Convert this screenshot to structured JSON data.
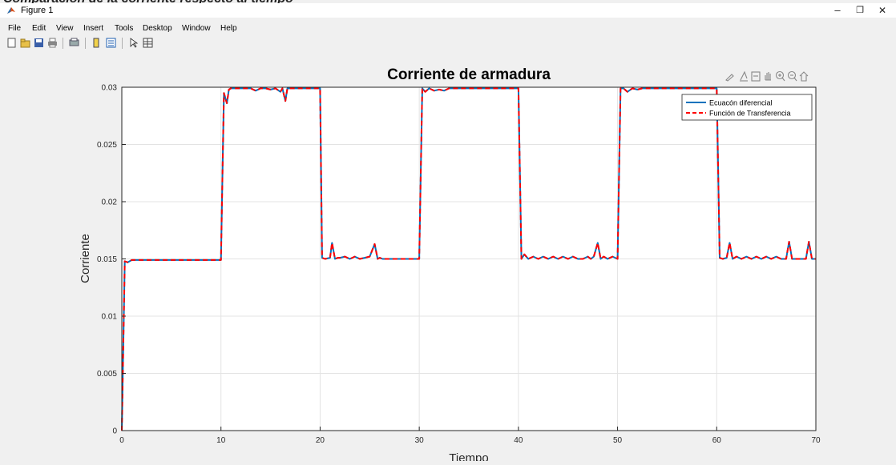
{
  "caption": "Comparación de la corriente respecto al tiempo",
  "window": {
    "title": "Figure 1",
    "minimize": "–",
    "restore": "❐",
    "close": "✕"
  },
  "menu": [
    "File",
    "Edit",
    "View",
    "Insert",
    "Tools",
    "Desktop",
    "Window",
    "Help"
  ],
  "axes_toolbar_icons": [
    "brush-icon",
    "data-tips-icon",
    "legend-icon",
    "pan-icon",
    "zoom-in-icon",
    "zoom-out-icon",
    "home-icon"
  ],
  "chart_data": {
    "type": "line",
    "title": "Corriente de armadura",
    "xlabel": "Tiempo",
    "ylabel": "Corriente",
    "xlim": [
      0,
      70
    ],
    "ylim": [
      0,
      0.03
    ],
    "xticks": [
      "0",
      "10",
      "20",
      "30",
      "40",
      "50",
      "60",
      "70"
    ],
    "yticks": [
      "0",
      "0.005",
      "0.01",
      "0.015",
      "0.02",
      "0.025",
      "0.03"
    ],
    "grid": true,
    "legend_position": "top-right",
    "series": [
      {
        "name": "Ecuacón diferencial",
        "color": "#0072bd",
        "style": "solid",
        "x": [
          0,
          0.3,
          0.6,
          1,
          2,
          4,
          6,
          8,
          10,
          10.3,
          10.6,
          10.8,
          11,
          11.3,
          12,
          13,
          13.5,
          14,
          14.5,
          15,
          15.5,
          16,
          16.2,
          16.5,
          16.7,
          17,
          17.5,
          18,
          19,
          20,
          20.2,
          20.5,
          21,
          21.2,
          21.5,
          21.8,
          22,
          22.5,
          23,
          23.5,
          24,
          24.5,
          25,
          25.5,
          25.8,
          26,
          26.3,
          27,
          28,
          29,
          30,
          30.3,
          30.6,
          31,
          31.5,
          32,
          32.5,
          33,
          34,
          35,
          36,
          38,
          40,
          40.3,
          40.6,
          41,
          41.5,
          42,
          42.5,
          43,
          43.5,
          44,
          44.5,
          45,
          45.5,
          46,
          46.5,
          47,
          47.3,
          47.6,
          48,
          48.3,
          48.6,
          49,
          49.5,
          50,
          50.3,
          50.6,
          51,
          51.5,
          52,
          52.5,
          53,
          54,
          55,
          56,
          58,
          60,
          60.3,
          60.6,
          61,
          61.3,
          61.6,
          62,
          62.5,
          63,
          63.5,
          64,
          64.5,
          65,
          65.5,
          66,
          66.5,
          67,
          67.3,
          67.6,
          68,
          68.5,
          69,
          69.3,
          69.6,
          70
        ],
        "y": [
          0,
          0.0148,
          0.0147,
          0.0149,
          0.0149,
          0.0149,
          0.0149,
          0.0149,
          0.0149,
          0.0295,
          0.0286,
          0.0298,
          0.0299,
          0.0299,
          0.0299,
          0.0299,
          0.0297,
          0.0299,
          0.0299,
          0.0298,
          0.0299,
          0.0296,
          0.0299,
          0.0288,
          0.0299,
          0.0299,
          0.0299,
          0.0299,
          0.0299,
          0.0299,
          0.0151,
          0.015,
          0.0151,
          0.0164,
          0.015,
          0.0151,
          0.0151,
          0.0152,
          0.015,
          0.0152,
          0.015,
          0.0151,
          0.0152,
          0.0163,
          0.015,
          0.0151,
          0.015,
          0.015,
          0.015,
          0.015,
          0.015,
          0.0299,
          0.0296,
          0.0299,
          0.0297,
          0.0298,
          0.0297,
          0.0299,
          0.0299,
          0.0299,
          0.0299,
          0.0299,
          0.0299,
          0.015,
          0.0154,
          0.015,
          0.0152,
          0.015,
          0.0152,
          0.015,
          0.0152,
          0.015,
          0.0152,
          0.015,
          0.0152,
          0.015,
          0.015,
          0.0152,
          0.015,
          0.0152,
          0.0164,
          0.015,
          0.0152,
          0.015,
          0.0152,
          0.015,
          0.0299,
          0.0299,
          0.0296,
          0.0299,
          0.0298,
          0.0299,
          0.0299,
          0.0299,
          0.0299,
          0.0299,
          0.0299,
          0.0299,
          0.0151,
          0.015,
          0.0151,
          0.0164,
          0.015,
          0.0152,
          0.015,
          0.0152,
          0.015,
          0.0152,
          0.015,
          0.0152,
          0.015,
          0.0152,
          0.015,
          0.015,
          0.0165,
          0.015,
          0.015,
          0.015,
          0.015,
          0.0165,
          0.015,
          0.015
        ]
      },
      {
        "name": "Función de Transferencia",
        "color": "#ff0000",
        "style": "dashed",
        "x": [
          0,
          0.3,
          0.6,
          1,
          2,
          4,
          6,
          8,
          10,
          10.3,
          10.6,
          10.8,
          11,
          11.3,
          12,
          13,
          13.5,
          14,
          14.5,
          15,
          15.5,
          16,
          16.2,
          16.5,
          16.7,
          17,
          17.5,
          18,
          19,
          20,
          20.2,
          20.5,
          21,
          21.2,
          21.5,
          21.8,
          22,
          22.5,
          23,
          23.5,
          24,
          24.5,
          25,
          25.5,
          25.8,
          26,
          26.3,
          27,
          28,
          29,
          30,
          30.3,
          30.6,
          31,
          31.5,
          32,
          32.5,
          33,
          34,
          35,
          36,
          38,
          40,
          40.3,
          40.6,
          41,
          41.5,
          42,
          42.5,
          43,
          43.5,
          44,
          44.5,
          45,
          45.5,
          46,
          46.5,
          47,
          47.3,
          47.6,
          48,
          48.3,
          48.6,
          49,
          49.5,
          50,
          50.3,
          50.6,
          51,
          51.5,
          52,
          52.5,
          53,
          54,
          55,
          56,
          58,
          60,
          60.3,
          60.6,
          61,
          61.3,
          61.6,
          62,
          62.5,
          63,
          63.5,
          64,
          64.5,
          65,
          65.5,
          66,
          66.5,
          67,
          67.3,
          67.6,
          68,
          68.5,
          69,
          69.3,
          69.6,
          70
        ],
        "y": [
          0,
          0.0148,
          0.0147,
          0.0149,
          0.0149,
          0.0149,
          0.0149,
          0.0149,
          0.0149,
          0.0295,
          0.0286,
          0.0298,
          0.0299,
          0.0299,
          0.0299,
          0.0299,
          0.0297,
          0.0299,
          0.0299,
          0.0298,
          0.0299,
          0.0296,
          0.0299,
          0.0288,
          0.0299,
          0.0299,
          0.0299,
          0.0299,
          0.0299,
          0.0299,
          0.0151,
          0.015,
          0.0151,
          0.0164,
          0.015,
          0.0151,
          0.0151,
          0.0152,
          0.015,
          0.0152,
          0.015,
          0.0151,
          0.0152,
          0.0163,
          0.015,
          0.0151,
          0.015,
          0.015,
          0.015,
          0.015,
          0.015,
          0.0299,
          0.0296,
          0.0299,
          0.0297,
          0.0298,
          0.0297,
          0.0299,
          0.0299,
          0.0299,
          0.0299,
          0.0299,
          0.0299,
          0.015,
          0.0154,
          0.015,
          0.0152,
          0.015,
          0.0152,
          0.015,
          0.0152,
          0.015,
          0.0152,
          0.015,
          0.0152,
          0.015,
          0.015,
          0.0152,
          0.015,
          0.0152,
          0.0164,
          0.015,
          0.0152,
          0.015,
          0.0152,
          0.015,
          0.0299,
          0.0299,
          0.0296,
          0.0299,
          0.0298,
          0.0299,
          0.0299,
          0.0299,
          0.0299,
          0.0299,
          0.0299,
          0.0299,
          0.0151,
          0.015,
          0.0151,
          0.0164,
          0.015,
          0.0152,
          0.015,
          0.0152,
          0.015,
          0.0152,
          0.015,
          0.0152,
          0.015,
          0.0152,
          0.015,
          0.015,
          0.0165,
          0.015,
          0.015,
          0.015,
          0.015,
          0.0165,
          0.015,
          0.015
        ]
      }
    ]
  }
}
